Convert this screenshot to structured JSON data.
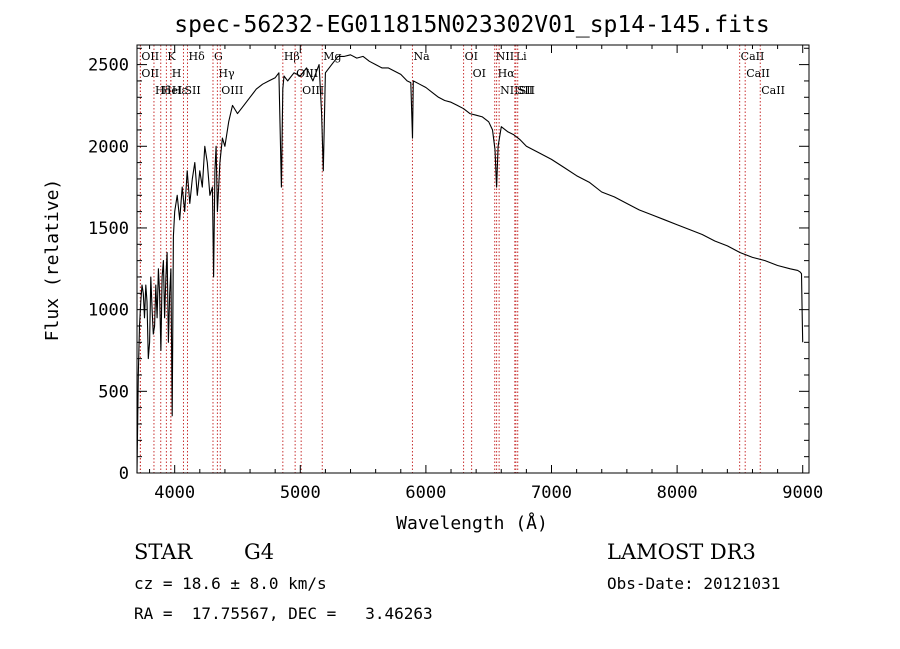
{
  "chart_data": {
    "type": "line",
    "title": "spec-56232-EG011815N023302V01_sp14-145.fits",
    "xlabel": "Wavelength (Å)",
    "ylabel": "Flux (relative)",
    "xlim": [
      3700,
      9050
    ],
    "ylim": [
      0,
      2620
    ],
    "x_ticks": [
      4000,
      5000,
      6000,
      7000,
      8000,
      9000
    ],
    "y_ticks": [
      0,
      500,
      1000,
      1500,
      2000,
      2500
    ],
    "series": [
      {
        "name": "flux",
        "x": [
          3700,
          3710,
          3720,
          3730,
          3740,
          3750,
          3760,
          3770,
          3780,
          3790,
          3800,
          3810,
          3820,
          3830,
          3840,
          3850,
          3860,
          3870,
          3880,
          3890,
          3900,
          3910,
          3920,
          3930,
          3940,
          3950,
          3960,
          3970,
          3980,
          3990,
          4000,
          4020,
          4040,
          4060,
          4080,
          4100,
          4120,
          4140,
          4160,
          4180,
          4200,
          4220,
          4240,
          4260,
          4280,
          4300,
          4310,
          4320,
          4330,
          4340,
          4360,
          4380,
          4400,
          4430,
          4460,
          4500,
          4550,
          4600,
          4650,
          4700,
          4750,
          4800,
          4830,
          4850,
          4861,
          4870,
          4900,
          4950,
          5000,
          5050,
          5100,
          5150,
          5170,
          5183,
          5200,
          5250,
          5300,
          5350,
          5400,
          5450,
          5500,
          5550,
          5600,
          5650,
          5700,
          5750,
          5800,
          5850,
          5880,
          5893,
          5900,
          5950,
          6000,
          6050,
          6100,
          6150,
          6200,
          6250,
          6300,
          6350,
          6400,
          6450,
          6500,
          6530,
          6550,
          6563,
          6575,
          6600,
          6650,
          6700,
          6750,
          6800,
          6900,
          7000,
          7100,
          7200,
          7300,
          7400,
          7500,
          7600,
          7700,
          7800,
          7900,
          8000,
          8100,
          8200,
          8300,
          8400,
          8500,
          8600,
          8700,
          8800,
          8900,
          8960,
          8980,
          8990,
          8995,
          9000
        ],
        "values": [
          0,
          600,
          900,
          1050,
          1150,
          1100,
          950,
          1150,
          1050,
          700,
          800,
          1200,
          1000,
          850,
          900,
          1150,
          950,
          1250,
          1100,
          750,
          1200,
          1300,
          950,
          1200,
          1350,
          800,
          1100,
          1250,
          350,
          1450,
          1600,
          1700,
          1550,
          1750,
          1600,
          1850,
          1650,
          1800,
          1900,
          1700,
          1850,
          1750,
          2000,
          1900,
          1700,
          1750,
          1200,
          1850,
          2000,
          1600,
          1900,
          2050,
          2000,
          2150,
          2250,
          2200,
          2250,
          2300,
          2350,
          2380,
          2400,
          2420,
          2450,
          1750,
          2350,
          2430,
          2400,
          2450,
          2430,
          2480,
          2400,
          2500,
          2200,
          1850,
          2450,
          2500,
          2550,
          2550,
          2560,
          2540,
          2550,
          2520,
          2500,
          2480,
          2480,
          2460,
          2440,
          2400,
          2390,
          2050,
          2400,
          2380,
          2360,
          2330,
          2300,
          2280,
          2270,
          2250,
          2230,
          2200,
          2190,
          2180,
          2150,
          2100,
          1980,
          1750,
          2000,
          2120,
          2090,
          2070,
          2040,
          2000,
          1960,
          1920,
          1870,
          1820,
          1780,
          1720,
          1690,
          1650,
          1610,
          1580,
          1550,
          1520,
          1490,
          1460,
          1420,
          1390,
          1350,
          1320,
          1300,
          1270,
          1250,
          1240,
          1230,
          1220,
          1000,
          800
        ]
      }
    ],
    "lines": [
      {
        "label": "Hδ",
        "x": 3835
      },
      {
        "label": "K",
        "x": 3934
      },
      {
        "label": "H",
        "x": 3969
      },
      {
        "label": "Hδ",
        "x": 4102
      },
      {
        "label": "OII",
        "x": 3727
      },
      {
        "label": "HeI",
        "x": 3889
      },
      {
        "label": "SII",
        "x": 4070
      },
      {
        "label": "OIII",
        "x": 4363
      },
      {
        "label": "OII",
        "x": 3727
      },
      {
        "label": "Hε",
        "x": 3970
      },
      {
        "label": "Hγ",
        "x": 4340
      },
      {
        "label": "G",
        "x": 4305
      },
      {
        "label": "OIII",
        "x": 4959
      },
      {
        "label": "OIII",
        "x": 5007
      },
      {
        "label": "Hβ",
        "x": 4861
      },
      {
        "label": "Mg",
        "x": 5175
      },
      {
        "label": "Na",
        "x": 5893
      },
      {
        "label": "OI",
        "x": 6300
      },
      {
        "label": "OI",
        "x": 6364
      },
      {
        "label": "Hα",
        "x": 6563
      },
      {
        "label": "SII",
        "x": 6716
      },
      {
        "label": "SII",
        "x": 6731
      },
      {
        "label": "NII",
        "x": 6548
      },
      {
        "label": "NII",
        "x": 6583
      },
      {
        "label": "Li",
        "x": 6708
      },
      {
        "label": "CaII",
        "x": 8498
      },
      {
        "label": "CaII",
        "x": 8542
      },
      {
        "label": "CaII",
        "x": 8662
      }
    ],
    "annotations": {
      "class": "STAR",
      "subclass": "G4",
      "survey": "LAMOST DR3",
      "cz": "cz = 18.6 ± 8.0 km/s",
      "obs_date": "Obs-Date: 20121031",
      "coords": "RA =  17.75567, DEC =   3.46263"
    }
  }
}
